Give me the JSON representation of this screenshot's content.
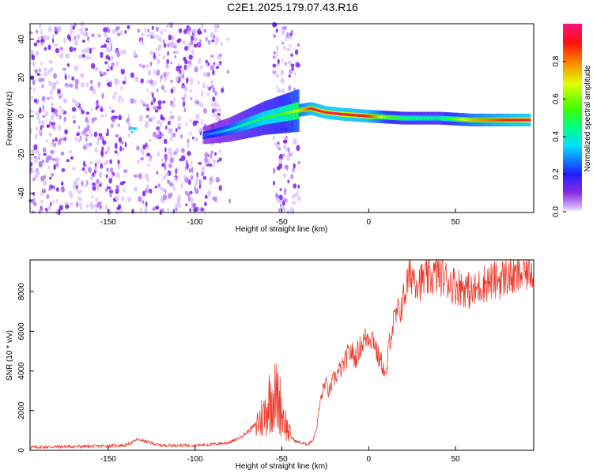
{
  "title": "C2E1.2025.179.07.43.R16",
  "chart_data": [
    {
      "type": "heatmap",
      "xlabel": "Height of straight line (km)",
      "ylabel": "Frequency (Hz)",
      "xlim": [
        -195,
        95
      ],
      "ylim": [
        -50,
        48
      ],
      "xticks": [
        -150,
        -100,
        -50,
        0,
        50
      ],
      "yticks": [
        -40,
        -20,
        0,
        20,
        40
      ],
      "colorbar": {
        "label": "Normalized spectral amplitude",
        "range": [
          0,
          1
        ],
        "ticks": [
          0.0,
          0.2,
          0.4,
          0.6,
          0.8
        ]
      },
      "ridge": {
        "x": [
          -95,
          -80,
          -70,
          -60,
          -50,
          -40,
          -33,
          -25,
          -15,
          0,
          10,
          20,
          40,
          60,
          80,
          93
        ],
        "frequency": [
          -10,
          -7,
          -4,
          -1,
          1,
          3,
          4,
          2,
          1,
          0,
          -0.5,
          -1,
          -1,
          -2,
          -2,
          -2
        ],
        "amplitude": [
          0.25,
          0.35,
          0.45,
          0.5,
          0.55,
          0.7,
          0.9,
          0.95,
          0.95,
          0.9,
          0.6,
          0.5,
          0.45,
          0.75,
          0.9,
          0.95
        ]
      },
      "noise_region_x": [
        -195,
        -40
      ],
      "grid": false
    },
    {
      "type": "line",
      "xlabel": "Height of straight line (km)",
      "ylabel": "SNR (10 * v/v)",
      "xlim": [
        -195,
        95
      ],
      "ylim": [
        0,
        9600
      ],
      "xticks": [
        -150,
        -100,
        -50,
        0,
        50
      ],
      "yticks": [
        0,
        2000,
        4000,
        6000,
        8000
      ],
      "series": [
        {
          "color": "#f03a2c",
          "x": [
            -195,
            -180,
            -160,
            -140,
            -133,
            -120,
            -100,
            -90,
            -80,
            -75,
            -70,
            -65,
            -60,
            -58,
            -55,
            -52,
            -50,
            -47,
            -45,
            -42,
            -38,
            -35,
            -32,
            -30,
            -28,
            -25,
            -23,
            -20,
            -17,
            -15,
            -12,
            -10,
            -8,
            -5,
            -2,
            0,
            3,
            5,
            8,
            10,
            12,
            15,
            18,
            20,
            22,
            25,
            28,
            30,
            35,
            40,
            45,
            50,
            55,
            60,
            65,
            70,
            75,
            80,
            85,
            90,
            93
          ],
          "y": [
            150,
            180,
            200,
            250,
            550,
            250,
            250,
            300,
            400,
            600,
            900,
            1300,
            1800,
            2400,
            2800,
            2600,
            2000,
            1100,
            700,
            450,
            350,
            300,
            550,
            1100,
            2400,
            3500,
            2900,
            3600,
            4000,
            4200,
            4800,
            5000,
            4600,
            5200,
            5600,
            5800,
            5600,
            4800,
            4300,
            3600,
            5600,
            6600,
            7100,
            7600,
            8400,
            8900,
            8600,
            8500,
            8700,
            8900,
            8600,
            8300,
            8200,
            7900,
            8400,
            8500,
            8600,
            8800,
            8700,
            9000,
            9100
          ]
        }
      ],
      "grid": false
    }
  ]
}
